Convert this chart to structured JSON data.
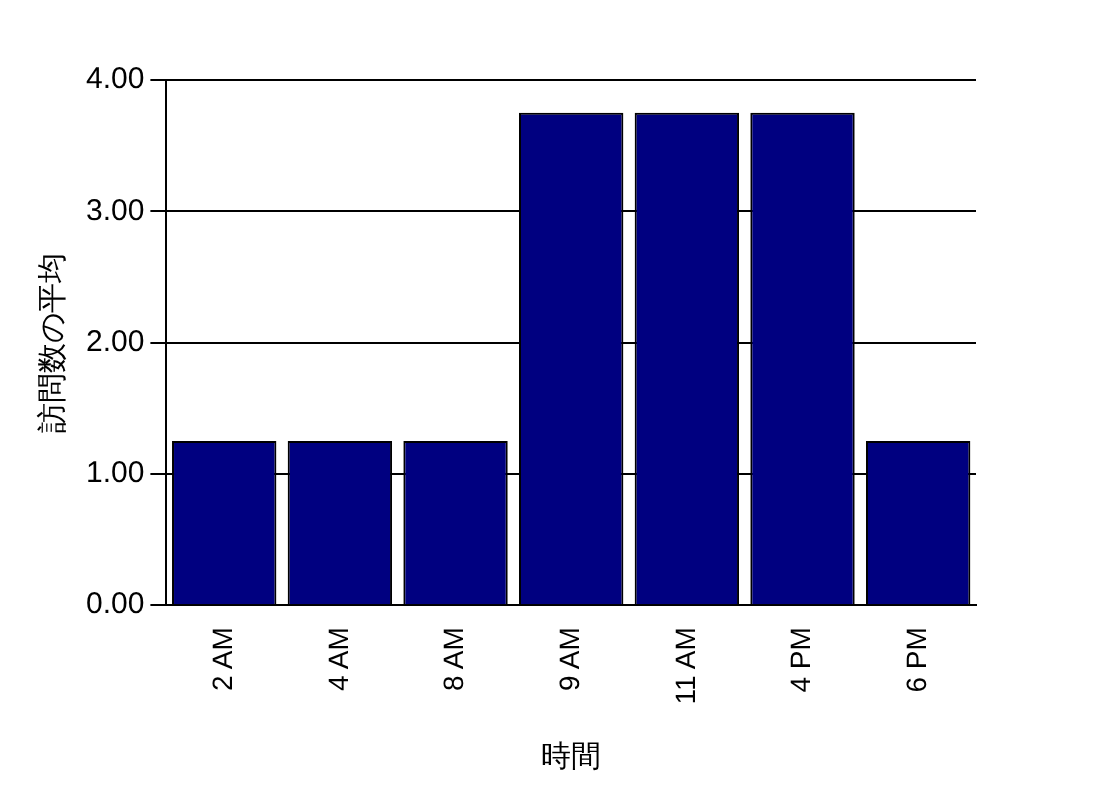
{
  "chart_data": {
    "type": "bar",
    "xlabel": "時間",
    "ylabel": "訪問数の平均",
    "categories": [
      "2 AM",
      "4 AM",
      "8 AM",
      "9 AM",
      "11 AM",
      "4 PM",
      "6 PM"
    ],
    "values": [
      1.25,
      1.25,
      1.25,
      3.75,
      3.75,
      3.75,
      1.25
    ],
    "color": "#000080",
    "ylim": [
      0,
      4
    ],
    "yticks": [
      {
        "value": 0,
        "label": "0.00"
      },
      {
        "value": 1,
        "label": "1.00"
      },
      {
        "value": 2,
        "label": "2.00"
      },
      {
        "value": 3,
        "label": "3.00"
      },
      {
        "value": 4,
        "label": "4.00"
      }
    ],
    "grid": "y",
    "legend": false
  }
}
